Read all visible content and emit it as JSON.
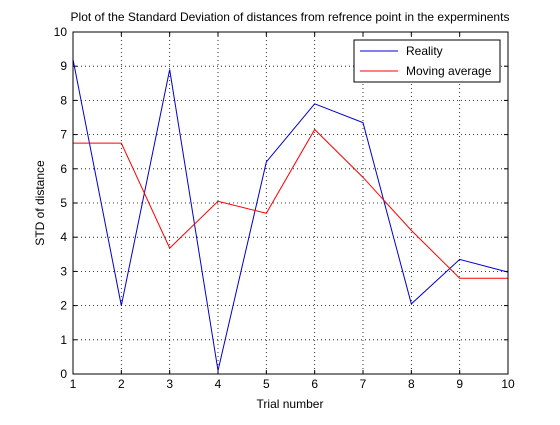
{
  "chart_data": {
    "type": "line",
    "title": "Plot of the Standard Deviation of distances from refrence point in the experminents",
    "xlabel": "Trial number",
    "ylabel": "STD of distance",
    "x": [
      1,
      2,
      3,
      4,
      5,
      6,
      7,
      8,
      9,
      10
    ],
    "xlim": [
      1,
      10
    ],
    "ylim": [
      0,
      10
    ],
    "xticks": [
      "1",
      "2",
      "3",
      "4",
      "5",
      "6",
      "7",
      "8",
      "9",
      "10"
    ],
    "yticks": [
      "0",
      "1",
      "2",
      "3",
      "4",
      "5",
      "6",
      "7",
      "8",
      "9",
      "10"
    ],
    "grid": true,
    "legend_position": "top-right",
    "series": [
      {
        "name": "Reality",
        "color": "#0000cc",
        "values": [
          9.2,
          2.0,
          8.9,
          0.1,
          6.2,
          7.9,
          7.35,
          2.05,
          3.35,
          2.98
        ]
      },
      {
        "name": "Moving average",
        "color": "#ff0000",
        "values": [
          6.75,
          6.75,
          3.68,
          5.05,
          4.7,
          7.15,
          5.75,
          4.2,
          2.8,
          2.8
        ]
      }
    ]
  }
}
